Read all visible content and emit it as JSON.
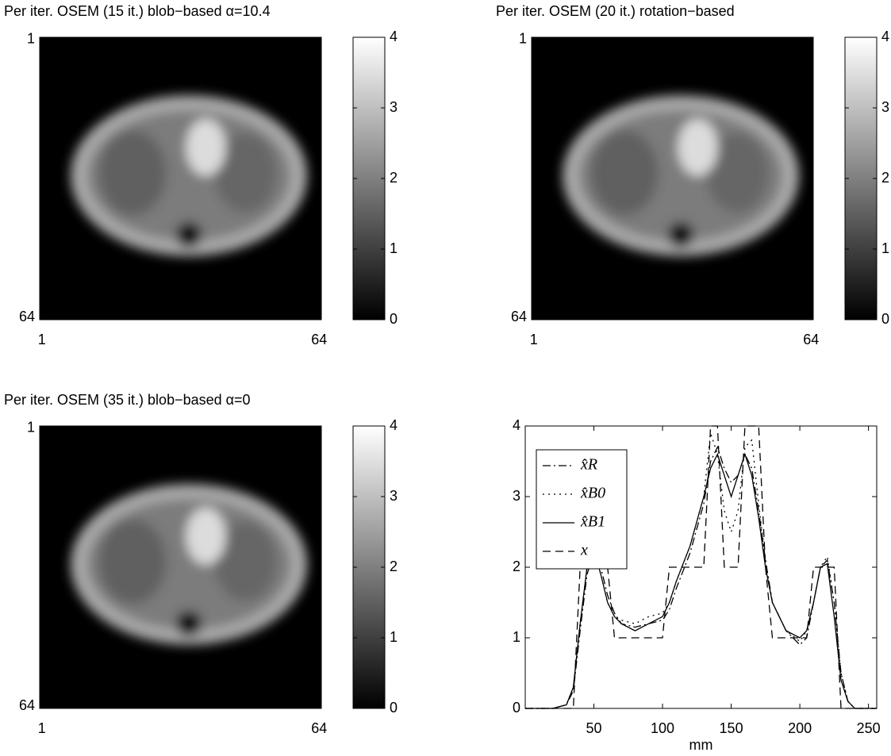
{
  "chart_data": [
    {
      "type": "image",
      "title": "Per iter. OSEM (15 it.) blob−based α=10.4",
      "xlim": [
        0.5,
        64.5
      ],
      "xticks": [
        1,
        64
      ],
      "ylim": [
        64.5,
        0.5
      ],
      "yticks": [
        1,
        64
      ],
      "clim": [
        0,
        4
      ],
      "cticks": [
        0,
        1,
        2,
        3,
        4
      ],
      "colormap": "gray"
    },
    {
      "type": "image",
      "title": "Per iter. OSEM (20 it.) rotation−based",
      "xlim": [
        0.5,
        64.5
      ],
      "xticks": [
        1,
        64
      ],
      "ylim": [
        64.5,
        0.5
      ],
      "yticks": [
        1,
        64
      ],
      "clim": [
        0,
        4
      ],
      "cticks": [
        0,
        1,
        2,
        3,
        4
      ],
      "colormap": "gray"
    },
    {
      "type": "image",
      "title": "Per iter. OSEM (35 it.) blob−based α=0",
      "xlim": [
        0.5,
        64.5
      ],
      "xticks": [
        1,
        64
      ],
      "ylim": [
        64.5,
        0.5
      ],
      "yticks": [
        1,
        64
      ],
      "clim": [
        0,
        4
      ],
      "cticks": [
        0,
        1,
        2,
        3,
        4
      ],
      "colormap": "gray"
    },
    {
      "type": "line",
      "xlabel": "mm",
      "xlim": [
        0,
        256
      ],
      "xticks": [
        50,
        100,
        150,
        200,
        250
      ],
      "ylim": [
        0,
        4
      ],
      "yticks": [
        0,
        1,
        2,
        3,
        4
      ],
      "legend": "upper left",
      "x": [
        0,
        10,
        20,
        30,
        35,
        40,
        45,
        50,
        55,
        60,
        65,
        70,
        80,
        90,
        100,
        105,
        110,
        120,
        130,
        135,
        140,
        145,
        150,
        155,
        160,
        165,
        170,
        175,
        180,
        190,
        200,
        205,
        210,
        215,
        220,
        225,
        230,
        235,
        240,
        250,
        256
      ],
      "series": [
        {
          "name": "x̂R",
          "color": "#000000",
          "linestyle": "dashdot",
          "values": [
            0,
            0,
            0,
            0.05,
            0.25,
            1.1,
            1.9,
            2.2,
            2.0,
            1.6,
            1.35,
            1.2,
            1.15,
            1.2,
            1.25,
            1.4,
            1.7,
            2.2,
            2.9,
            3.5,
            3.7,
            3.4,
            3.2,
            3.3,
            3.6,
            3.4,
            2.8,
            2.1,
            1.5,
            1.1,
            0.9,
            1.0,
            1.5,
            2.0,
            2.1,
            1.5,
            0.5,
            0.1,
            0,
            0,
            0
          ]
        },
        {
          "name": "x̂B0",
          "color": "#000000",
          "linestyle": "dotted",
          "values": [
            0,
            0,
            0,
            0.05,
            0.3,
            1.2,
            2.0,
            2.2,
            1.9,
            1.5,
            1.3,
            1.25,
            1.2,
            1.3,
            1.35,
            1.5,
            1.8,
            2.3,
            3.0,
            3.9,
            3.6,
            2.8,
            2.5,
            2.8,
            3.7,
            3.8,
            2.9,
            2.1,
            1.5,
            1.1,
            0.95,
            1.1,
            1.5,
            2.0,
            2.15,
            1.5,
            0.5,
            0.1,
            0,
            0,
            0
          ]
        },
        {
          "name": "x̂B1",
          "color": "#000000",
          "linestyle": "solid",
          "values": [
            0,
            0,
            0,
            0.05,
            0.3,
            1.2,
            2.0,
            2.25,
            1.9,
            1.5,
            1.3,
            1.2,
            1.1,
            1.2,
            1.3,
            1.5,
            1.8,
            2.3,
            3.0,
            3.4,
            3.6,
            3.3,
            3.0,
            3.3,
            3.6,
            3.3,
            2.7,
            2.0,
            1.5,
            1.1,
            1.0,
            1.1,
            1.5,
            2.0,
            2.05,
            1.3,
            0.4,
            0.1,
            0,
            0,
            0
          ]
        },
        {
          "name": "x",
          "color": "#000000",
          "linestyle": "dashed",
          "values": [
            0,
            0,
            0,
            0,
            0,
            2,
            2,
            2,
            2,
            2,
            1,
            1,
            1,
            1,
            1,
            2,
            2,
            2,
            2,
            4,
            4,
            2,
            2,
            2,
            4,
            4,
            4,
            2,
            1,
            1,
            1,
            1,
            2,
            2,
            2,
            2,
            0,
            0,
            0,
            0,
            0
          ]
        }
      ]
    }
  ]
}
